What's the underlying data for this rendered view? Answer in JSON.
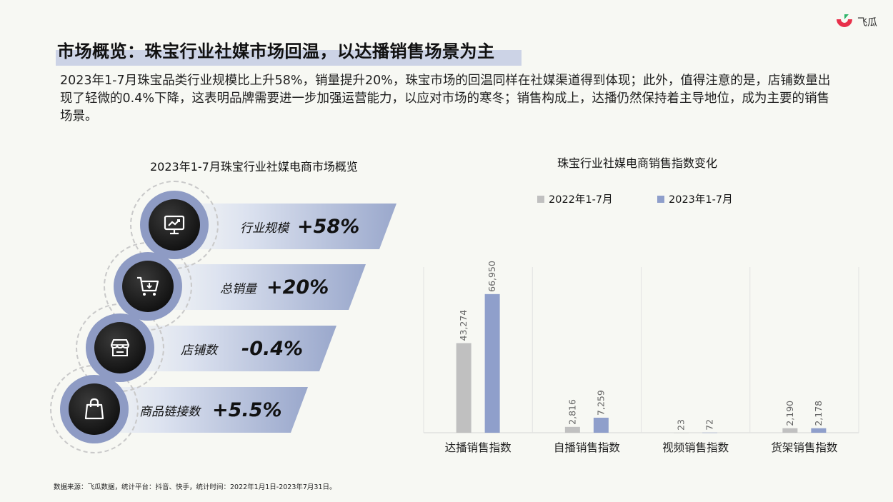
{
  "header": {
    "title": "市场概览：珠宝行业社媒市场回温，以达播销售场景为主",
    "logo_text": "飞瓜"
  },
  "description": "2023年1-7月珠宝品类行业规模比上升58%，销量提升20%，珠宝市场的回温同样在社媒渠道得到体现；此外，值得注意的是，店铺数量出现了轻微的0.4%下降，这表明品牌需要进一步加强运营能力，以应对市场的寒冬；销售构成上，达播仍然保持着主导地位，成为主要的销售场景。",
  "left_panel": {
    "title": "2023年1-7月珠宝行业社媒电商市场概览",
    "kpis": [
      {
        "label": "行业规模",
        "value": "+58%",
        "icon": "monitor-chart-icon"
      },
      {
        "label": "总销量",
        "value": "+20%",
        "icon": "shopping-cart-icon"
      },
      {
        "label": "店铺数",
        "value": "-0.4%",
        "icon": "storefront-icon"
      },
      {
        "label": "商品链接数",
        "value": "+5.5%",
        "icon": "shopping-bag-icon"
      }
    ]
  },
  "chart_data": {
    "type": "bar",
    "title": "珠宝行业社媒电商销售指数变化",
    "categories": [
      "达播销售指数",
      "自播销售指数",
      "视频销售指数",
      "货架销售指数"
    ],
    "series": [
      {
        "name": "2022年1-7月",
        "values": [
          43274,
          2816,
          23,
          2190
        ],
        "labels": [
          "43,274",
          "2,816",
          "23",
          "2,190"
        ],
        "color": "#c0c0c0"
      },
      {
        "name": "2023年1-7月",
        "values": [
          66950,
          7259,
          72,
          2178
        ],
        "labels": [
          "66,950",
          "7,259",
          "72",
          "2,178"
        ],
        "color": "#8f9fcb"
      }
    ],
    "ylim": [
      0,
      80000
    ],
    "legend": "top",
    "grid": false
  },
  "footer": {
    "source": "数据来源：飞瓜数据，统计平台：抖音、快手，统计时间：2022年1月1日-2023年7月31日。"
  }
}
